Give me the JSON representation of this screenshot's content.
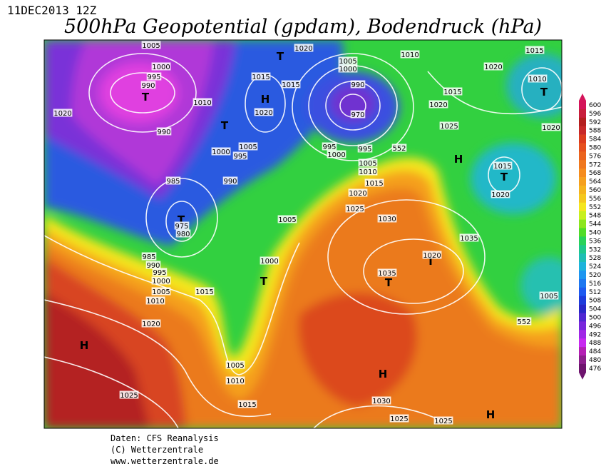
{
  "header": {
    "date": "11DEC2013 12Z",
    "title": "500hPa Geopotential (gpdam), Bodendruck (hPa)"
  },
  "legend": {
    "labels": [
      600,
      596,
      592,
      588,
      584,
      580,
      576,
      572,
      568,
      564,
      560,
      556,
      552,
      548,
      544,
      540,
      536,
      532,
      528,
      524,
      520,
      516,
      512,
      508,
      504,
      500,
      496,
      492,
      488,
      484,
      480,
      476
    ],
    "colors": [
      "#d4145a",
      "#c81e3c",
      "#b41e1e",
      "#c82828",
      "#dc3c1e",
      "#e6501e",
      "#eb641e",
      "#f0781e",
      "#f58c1e",
      "#f5a01e",
      "#f5b41e",
      "#f5c81e",
      "#f5e61e",
      "#c8f01e",
      "#8ce61e",
      "#50dc28",
      "#28d25a",
      "#1ec88c",
      "#1ebeb4",
      "#1eb4dc",
      "#1e96f0",
      "#1e78f0",
      "#1e5af0",
      "#1e3cdc",
      "#2828c8",
      "#5028d2",
      "#7828dc",
      "#a028e6",
      "#c828f0",
      "#b41eb4",
      "#8c1e8c",
      "#6e146e"
    ]
  },
  "map_labels": [
    "H",
    "H",
    "H",
    "H",
    "H",
    "T",
    "T",
    "T",
    "T",
    "T",
    "T",
    "T",
    "T",
    "T",
    "1005",
    "1000",
    "995",
    "990",
    "1020",
    "1010",
    "990",
    "1000",
    "1005",
    "995",
    "990",
    "985",
    "975",
    "980",
    "1015",
    "1015",
    "1020",
    "1020",
    "1005",
    "1000",
    "990",
    "970",
    "995",
    "1000",
    "995",
    "1005",
    "1010",
    "1015",
    "1020",
    "1025",
    "1030",
    "1005",
    "1000",
    "1035",
    "1020",
    "1035",
    "1010",
    "1015",
    "1020",
    "1025",
    "1020",
    "1015",
    "1010",
    "1020",
    "1015",
    "1020",
    "1005",
    "552",
    "552",
    "985",
    "990",
    "995",
    "1000",
    "1005",
    "1010",
    "1015",
    "1020",
    "1025",
    "1005",
    "1010",
    "1015",
    "1030",
    "1025",
    "1025"
  ],
  "footer": [
    "Daten: CFS Reanalysis",
    "(C) Wetterzentrale",
    "www.wetterzentrale.de"
  ]
}
